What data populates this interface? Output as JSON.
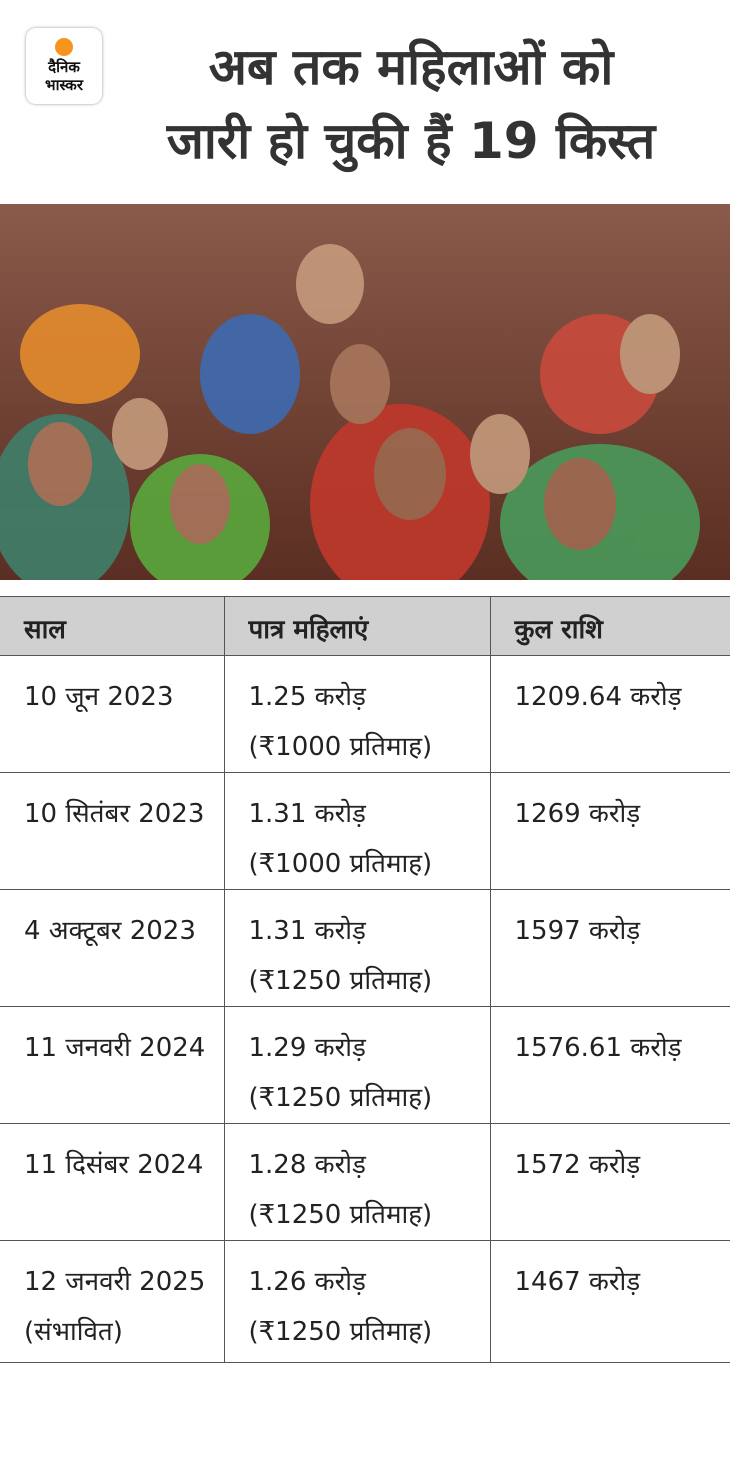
{
  "header": {
    "logo": [
      "दैनिक",
      "भास्कर"
    ],
    "title": [
      "अब तक महिलाओं को",
      "जारी हो चुकी हैं 19 किस्त"
    ]
  },
  "table": {
    "columns": [
      "साल",
      "पात्र महिलाएं",
      "कुल राशि"
    ],
    "rows": [
      [
        [
          "10 जून 2023"
        ],
        [
          "1.25 करोड़",
          "(₹1000 प्रतिमाह)"
        ],
        [
          "1209.64 करोड़"
        ]
      ],
      [
        [
          "10 सितंबर 2023"
        ],
        [
          "1.31 करोड़",
          "(₹1000 प्रतिमाह)"
        ],
        [
          "1269 करोड़"
        ]
      ],
      [
        [
          "4 अक्टूबर 2023"
        ],
        [
          "1.31 करोड़",
          "(₹1250 प्रतिमाह)"
        ],
        [
          "1597 करोड़"
        ]
      ],
      [
        [
          "11 जनवरी 2024"
        ],
        [
          "1.29 करोड़",
          "(₹1250 प्रतिमाह)"
        ],
        [
          "1576.61 करोड़"
        ]
      ],
      [
        [
          "11 दिसंबर 2024"
        ],
        [
          "1.28 करोड़",
          "(₹1250 प्रतिमाह)"
        ],
        [
          "1572 करोड़"
        ]
      ],
      [
        [
          "12 जनवरी 2025",
          "(संभावित)"
        ],
        [
          "1.26 करोड़",
          "(₹1250 प्रतिमाह)"
        ],
        [
          "1467 करोड़"
        ]
      ]
    ]
  }
}
